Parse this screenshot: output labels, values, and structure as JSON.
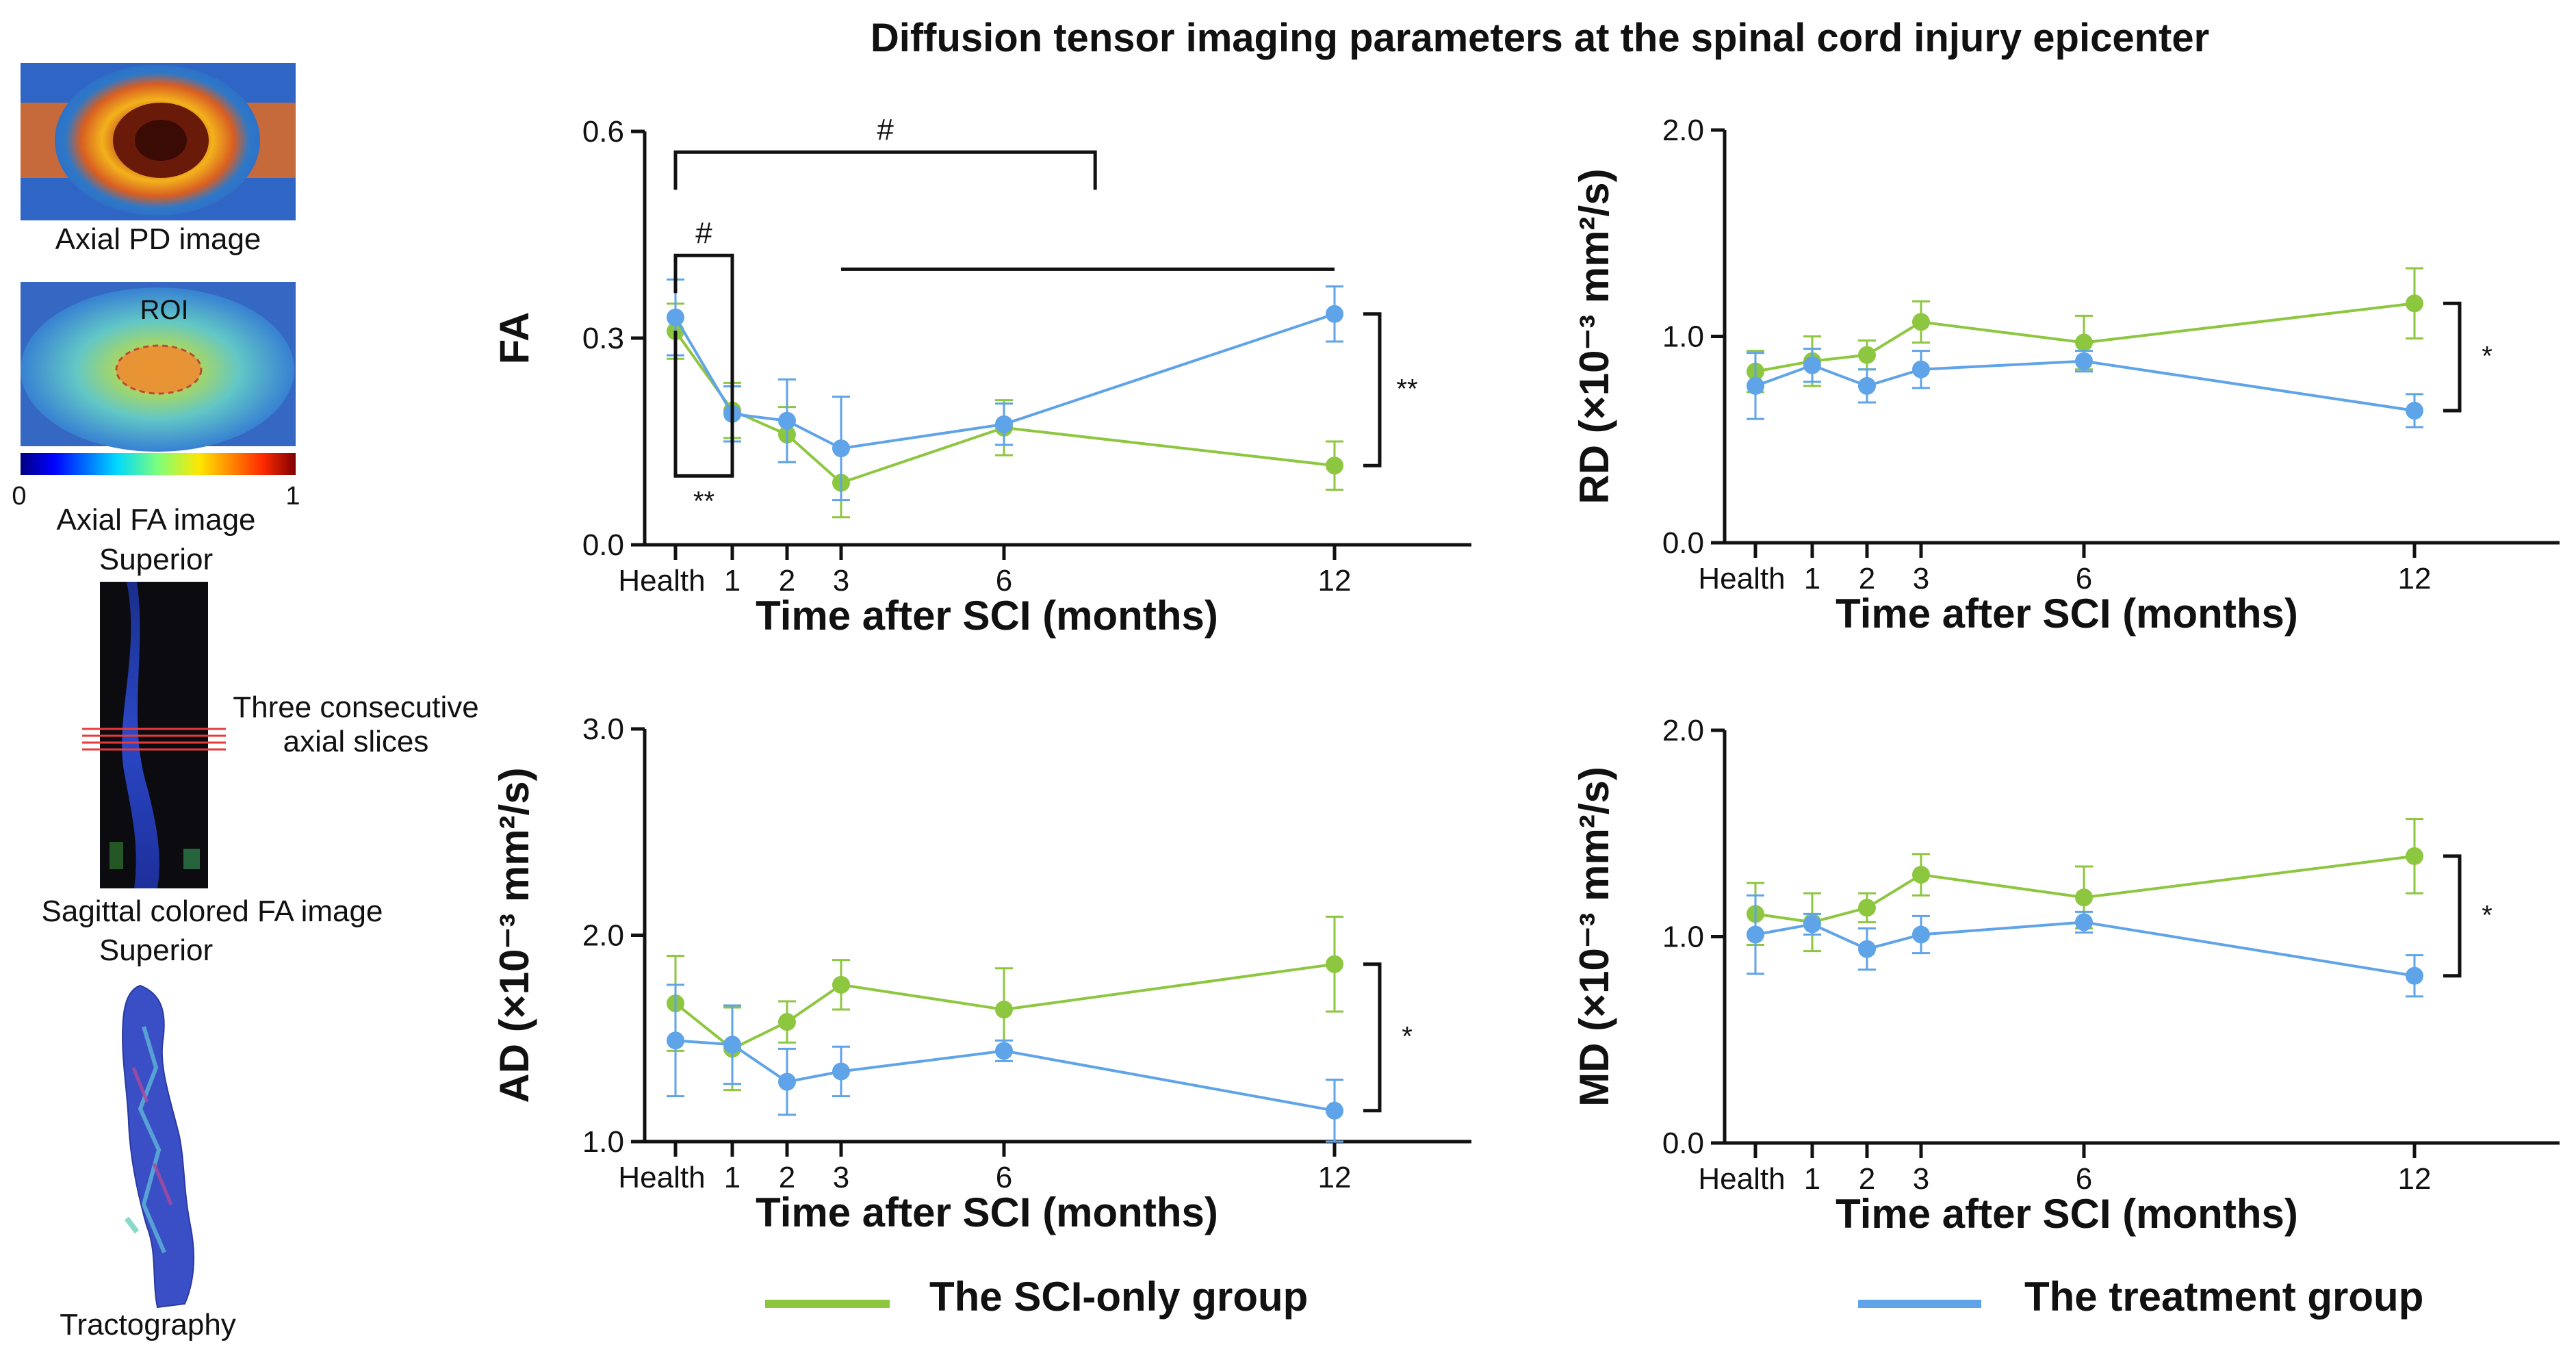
{
  "title": "Diffusion tensor imaging parameters at the spinal cord injury epicenter",
  "left_panel": {
    "axial_pd_caption": "Axial PD image",
    "roi_label": "ROI",
    "colorbar_min": "0",
    "colorbar_max": "1",
    "axial_fa_caption": "Axial FA image",
    "superior_label_1": "Superior",
    "slices_label_line1": "Three consecutive",
    "slices_label_line2": "axial slices",
    "sagittal_caption": "Sagittal colored FA image",
    "superior_label_2": "Superior",
    "tractography_caption": "Tractography"
  },
  "legend": [
    {
      "label": "The SCI-only group",
      "color": "#8dc63f"
    },
    {
      "label": "The treatment group",
      "color": "#5fa3e8"
    }
  ],
  "colors": {
    "sci": "#8dc63f",
    "treat": "#5fa3e8",
    "axis": "#111111"
  },
  "chart_data": [
    {
      "id": "fa",
      "type": "line",
      "title": "",
      "xlabel": "Time after SCI (months)",
      "ylabel": "FA",
      "x": [
        0,
        1,
        2,
        3,
        6,
        12
      ],
      "xtick_labels": [
        "Health",
        "1",
        "2",
        "3",
        "6",
        "12"
      ],
      "ylim": [
        0.0,
        0.6
      ],
      "yticks": [
        0.0,
        0.3,
        0.6
      ],
      "ytick_labels": [
        "0.0",
        "0.3",
        "0.6"
      ],
      "series": [
        {
          "name": "The SCI-only group",
          "color": "#8dc63f",
          "values": [
            0.31,
            0.195,
            0.16,
            0.09,
            0.17,
            0.115
          ],
          "errors": [
            0.04,
            0.04,
            0.04,
            0.05,
            0.04,
            0.035
          ]
        },
        {
          "name": "The treatment group",
          "color": "#5fa3e8",
          "values": [
            0.33,
            0.19,
            0.18,
            0.14,
            0.175,
            0.335
          ],
          "errors": [
            0.055,
            0.04,
            0.06,
            0.075,
            0.03,
            0.04
          ]
        }
      ],
      "annotations": [
        {
          "text": "#",
          "kind": "bracket-top",
          "x1": 0,
          "x2": 7.3,
          "at": 0.57
        },
        {
          "text": "",
          "kind": "line",
          "x1": 3,
          "x2": 12,
          "at": 0.4
        },
        {
          "text": "#",
          "kind": "bracket-top",
          "x1": 0,
          "x2": 1,
          "at": 0.42
        },
        {
          "text": "**",
          "kind": "bracket-left",
          "x1": 0,
          "x2": 1,
          "ya": 0.42,
          "yb": 0.1
        },
        {
          "text": "**",
          "kind": "bracket-right",
          "x": 12.7,
          "y1": 0.335,
          "y2": 0.115
        }
      ]
    },
    {
      "id": "rd",
      "type": "line",
      "title": "",
      "xlabel": "Time after SCI (months)",
      "ylabel": "RD (×10⁻³ mm²/s)",
      "x": [
        0,
        1,
        2,
        3,
        6,
        12
      ],
      "xtick_labels": [
        "Health",
        "1",
        "2",
        "3",
        "6",
        "12"
      ],
      "ylim": [
        0.0,
        2.0
      ],
      "yticks": [
        0.0,
        1.0,
        2.0
      ],
      "ytick_labels": [
        "0.0",
        "1.0",
        "2.0"
      ],
      "series": [
        {
          "name": "The SCI-only group",
          "color": "#8dc63f",
          "values": [
            0.83,
            0.88,
            0.91,
            1.07,
            0.97,
            1.16
          ],
          "errors": [
            0.1,
            0.12,
            0.07,
            0.1,
            0.13,
            0.17
          ]
        },
        {
          "name": "The treatment group",
          "color": "#5fa3e8",
          "values": [
            0.76,
            0.86,
            0.76,
            0.84,
            0.88,
            0.64
          ],
          "errors": [
            0.16,
            0.08,
            0.08,
            0.09,
            0.05,
            0.08
          ]
        }
      ],
      "annotations": [
        {
          "text": "*",
          "kind": "bracket-right",
          "x": 12.7,
          "y1": 1.16,
          "y2": 0.64
        }
      ]
    },
    {
      "id": "ad",
      "type": "line",
      "title": "",
      "xlabel": "Time after SCI (months)",
      "ylabel": "AD (×10⁻³ mm²/s)",
      "x": [
        0,
        1,
        2,
        3,
        6,
        12
      ],
      "xtick_labels": [
        "Health",
        "1",
        "2",
        "3",
        "6",
        "12"
      ],
      "ylim": [
        1.0,
        3.0
      ],
      "yticks": [
        1.0,
        2.0,
        3.0
      ],
      "ytick_labels": [
        "1.0",
        "2.0",
        "3.0"
      ],
      "series": [
        {
          "name": "The SCI-only group",
          "color": "#8dc63f",
          "values": [
            1.67,
            1.45,
            1.58,
            1.76,
            1.64,
            1.86
          ],
          "errors": [
            0.23,
            0.2,
            0.1,
            0.12,
            0.2,
            0.23
          ]
        },
        {
          "name": "The treatment group",
          "color": "#5fa3e8",
          "values": [
            1.49,
            1.47,
            1.29,
            1.34,
            1.44,
            1.15
          ],
          "errors": [
            0.27,
            0.19,
            0.16,
            0.12,
            0.05,
            0.15
          ]
        }
      ],
      "annotations": [
        {
          "text": "*",
          "kind": "bracket-right",
          "x": 12.7,
          "y1": 1.86,
          "y2": 1.15
        }
      ]
    },
    {
      "id": "md",
      "type": "line",
      "title": "",
      "xlabel": "Time after SCI (months)",
      "ylabel": "MD (×10⁻³ mm²/s)",
      "x": [
        0,
        1,
        2,
        3,
        6,
        12
      ],
      "xtick_labels": [
        "Health",
        "1",
        "2",
        "3",
        "6",
        "12"
      ],
      "ylim": [
        0.0,
        2.0
      ],
      "yticks": [
        0.0,
        1.0,
        2.0
      ],
      "ytick_labels": [
        "0.0",
        "1.0",
        "2.0"
      ],
      "series": [
        {
          "name": "The SCI-only group",
          "color": "#8dc63f",
          "values": [
            1.11,
            1.07,
            1.14,
            1.3,
            1.19,
            1.39
          ],
          "errors": [
            0.15,
            0.14,
            0.07,
            0.1,
            0.15,
            0.18
          ]
        },
        {
          "name": "The treatment group",
          "color": "#5fa3e8",
          "values": [
            1.01,
            1.06,
            0.94,
            1.01,
            1.07,
            0.81
          ],
          "errors": [
            0.19,
            0.05,
            0.1,
            0.09,
            0.05,
            0.1
          ]
        }
      ],
      "annotations": [
        {
          "text": "*",
          "kind": "bracket-right",
          "x": 12.7,
          "y1": 1.39,
          "y2": 0.81
        }
      ]
    }
  ]
}
